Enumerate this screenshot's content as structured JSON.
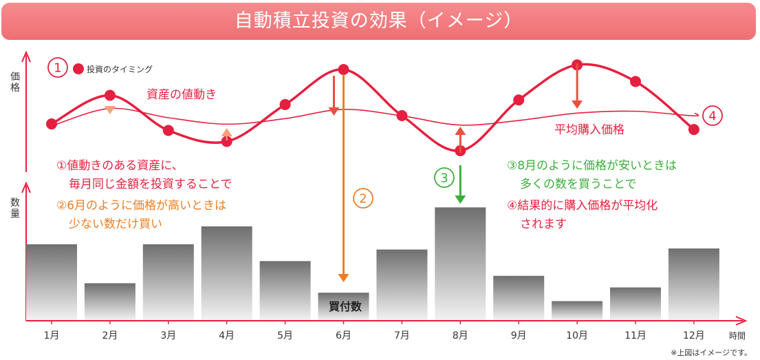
{
  "title": "自動積立投資の効果（イメージ）",
  "axis": {
    "price": "価格",
    "quantity": "数量",
    "time": "時間"
  },
  "colors": {
    "red": "#e51f3f",
    "orange": "#ef7d22",
    "green": "#3aae3a",
    "banner": "#f27b7f"
  },
  "legend": {
    "number": "①",
    "label": "投資のタイミング"
  },
  "labels": {
    "asset_movement": "資産の値動き",
    "average_price": "平均購入価格",
    "purchase_qty": "買付数",
    "marker_2": "②",
    "marker_3": "③",
    "marker_4": "④"
  },
  "notes": {
    "n1_line1": "①値動きのある資産に、",
    "n1_line2": "毎月同じ金額を投資することで",
    "n2_line1": "②6月のように価格が高いときは",
    "n2_line2": "少ない数だけ買い",
    "n3_line1": "③8月のように価格が安いときは",
    "n3_line2": "多くの数を買うことで",
    "n4_line1": "④結果的に購入価格が平均化",
    "n4_line2": "されます"
  },
  "footnote": "※上図はイメージです。",
  "chart_data": {
    "type": "bar",
    "categories": [
      "1月",
      "2月",
      "3月",
      "4月",
      "5月",
      "6月",
      "7月",
      "8月",
      "9月",
      "10月",
      "11月",
      "12月"
    ],
    "series": [
      {
        "values": [
          7.2,
          3.5,
          7.2,
          8.9,
          5.6,
          2.6,
          6.7,
          10.7,
          4.2,
          1.8,
          3.1,
          6.8
        ]
      }
    ],
    "price_series": {
      "values": [
        4.1,
        7.2,
        3.4,
        2.2,
        6.2,
        10.0,
        5.0,
        1.2,
        6.7,
        10.5,
        8.7,
        3.5
      ]
    },
    "average_price_series": {
      "values": [
        4.1,
        6.0,
        5.0,
        4.3,
        4.9,
        5.9,
        5.2,
        4.2,
        4.7,
        5.5,
        5.7,
        5.2
      ]
    }
  }
}
